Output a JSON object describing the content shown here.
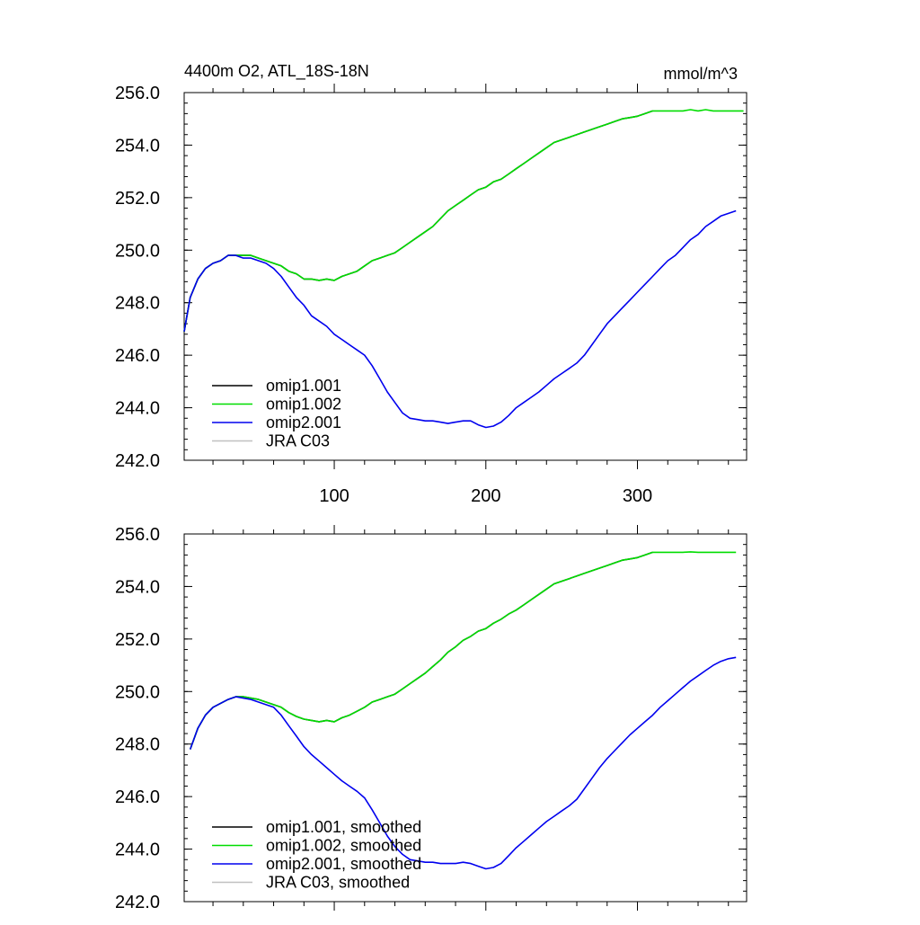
{
  "chart_data": [
    {
      "type": "line",
      "title": "4400m O2, ATL_18S-18N",
      "units": "mmol/m^3",
      "xlim": [
        1,
        372
      ],
      "ylim": [
        242.0,
        256.0
      ],
      "x_ticks": [
        100,
        200,
        300
      ],
      "x_tick_labels": [
        "100",
        "200",
        "300"
      ],
      "y_ticks": [
        242.0,
        244.0,
        246.0,
        248.0,
        250.0,
        252.0,
        254.0,
        256.0
      ],
      "y_tick_labels": [
        "242.0",
        "244.0",
        "246.0",
        "248.0",
        "250.0",
        "252.0",
        "254.0",
        "256.0"
      ],
      "legend_position": "bottom-left",
      "series": [
        {
          "name": "omip1.001",
          "color": "#000000",
          "x": [
            1,
            5,
            10,
            15,
            20,
            25,
            30,
            35,
            40,
            45,
            50,
            55,
            60,
            65,
            70,
            75,
            80,
            85,
            90,
            95,
            100,
            105,
            110,
            115,
            120,
            125,
            130,
            135,
            140,
            145,
            150,
            155,
            160,
            165,
            170,
            175,
            180,
            185,
            190,
            195,
            200,
            205,
            210,
            215,
            220,
            225,
            230,
            235,
            240,
            245,
            250,
            255,
            260,
            265,
            270,
            275,
            280,
            285,
            290,
            295,
            300,
            305,
            310
          ],
          "y": [
            246.9,
            248.2,
            248.9,
            249.3,
            249.5,
            249.6,
            249.8,
            249.8,
            249.8,
            249.8,
            249.7,
            249.6,
            249.5,
            249.4,
            249.2,
            249.1,
            248.9,
            248.9,
            248.85,
            248.9,
            248.85,
            249.0,
            249.1,
            249.2,
            249.4,
            249.6,
            249.7,
            249.8,
            249.9,
            250.1,
            250.3,
            250.5,
            250.7,
            250.9,
            251.2,
            251.5,
            251.7,
            251.9,
            252.1,
            252.3,
            252.4,
            252.6,
            252.7,
            252.9,
            253.1,
            253.3,
            253.5,
            253.7,
            253.9,
            254.1,
            254.2,
            254.3,
            254.4,
            254.5,
            254.6,
            254.7,
            254.8,
            254.9,
            255.0,
            255.05,
            255.1,
            255.2,
            255.3
          ]
        },
        {
          "name": "omip1.002",
          "color": "#00dd00",
          "x": [
            1,
            5,
            10,
            15,
            20,
            25,
            30,
            35,
            40,
            45,
            50,
            55,
            60,
            65,
            70,
            75,
            80,
            85,
            90,
            95,
            100,
            105,
            110,
            115,
            120,
            125,
            130,
            135,
            140,
            145,
            150,
            155,
            160,
            165,
            170,
            175,
            180,
            185,
            190,
            195,
            200,
            205,
            210,
            215,
            220,
            225,
            230,
            235,
            240,
            245,
            250,
            255,
            260,
            265,
            270,
            275,
            280,
            285,
            290,
            295,
            300,
            305,
            310,
            315,
            320,
            325,
            330,
            335,
            340,
            345,
            350,
            355,
            360,
            365,
            370
          ],
          "y": [
            246.9,
            248.2,
            248.9,
            249.3,
            249.5,
            249.6,
            249.8,
            249.8,
            249.8,
            249.8,
            249.7,
            249.6,
            249.5,
            249.4,
            249.2,
            249.1,
            248.9,
            248.9,
            248.85,
            248.9,
            248.85,
            249.0,
            249.1,
            249.2,
            249.4,
            249.6,
            249.7,
            249.8,
            249.9,
            250.1,
            250.3,
            250.5,
            250.7,
            250.9,
            251.2,
            251.5,
            251.7,
            251.9,
            252.1,
            252.3,
            252.4,
            252.6,
            252.7,
            252.9,
            253.1,
            253.3,
            253.5,
            253.7,
            253.9,
            254.1,
            254.2,
            254.3,
            254.4,
            254.5,
            254.6,
            254.7,
            254.8,
            254.9,
            255.0,
            255.05,
            255.1,
            255.2,
            255.3,
            255.3,
            255.3,
            255.3,
            255.3,
            255.35,
            255.3,
            255.35,
            255.3,
            255.3,
            255.3,
            255.3,
            255.3
          ]
        },
        {
          "name": "omip2.001",
          "color": "#0000ee",
          "x": [
            1,
            5,
            10,
            15,
            20,
            25,
            30,
            35,
            40,
            45,
            50,
            55,
            60,
            65,
            70,
            75,
            80,
            85,
            90,
            95,
            100,
            105,
            110,
            115,
            120,
            125,
            130,
            135,
            140,
            145,
            150,
            155,
            160,
            165,
            170,
            175,
            180,
            185,
            190,
            195,
            200,
            205,
            210,
            215,
            220,
            225,
            230,
            235,
            240,
            245,
            250,
            255,
            260,
            265,
            270,
            275,
            280,
            285,
            290,
            295,
            300,
            305,
            310,
            315,
            320,
            325,
            330,
            335,
            340,
            345,
            350,
            355,
            360,
            365
          ],
          "y": [
            246.9,
            248.2,
            248.9,
            249.3,
            249.5,
            249.6,
            249.8,
            249.8,
            249.7,
            249.7,
            249.6,
            249.5,
            249.3,
            249.0,
            248.6,
            248.2,
            247.9,
            247.5,
            247.3,
            247.1,
            246.8,
            246.6,
            246.4,
            246.2,
            246.0,
            245.6,
            245.1,
            244.6,
            244.2,
            243.8,
            243.6,
            243.55,
            243.5,
            243.5,
            243.45,
            243.4,
            243.45,
            243.5,
            243.5,
            243.35,
            243.25,
            243.3,
            243.45,
            243.7,
            244.0,
            244.2,
            244.4,
            244.6,
            244.85,
            245.1,
            245.3,
            245.5,
            245.7,
            246.0,
            246.4,
            246.8,
            247.2,
            247.5,
            247.8,
            248.1,
            248.4,
            248.7,
            249.0,
            249.3,
            249.6,
            249.8,
            250.1,
            250.4,
            250.6,
            250.9,
            251.1,
            251.3,
            251.4,
            251.5
          ]
        },
        {
          "name": "JRA C03",
          "color": "#c0c0c0",
          "x": [],
          "y": []
        }
      ]
    },
    {
      "type": "line",
      "title": "",
      "units": "",
      "xlim": [
        1,
        372
      ],
      "ylim": [
        242.0,
        256.0
      ],
      "x_ticks": [
        100,
        200,
        300
      ],
      "x_tick_labels": [],
      "y_ticks": [
        242.0,
        244.0,
        246.0,
        248.0,
        250.0,
        252.0,
        254.0,
        256.0
      ],
      "y_tick_labels": [
        "242.0",
        "244.0",
        "246.0",
        "248.0",
        "250.0",
        "252.0",
        "254.0",
        "256.0"
      ],
      "legend_position": "bottom-left",
      "series": [
        {
          "name": "omip1.001, smoothed",
          "color": "#000000",
          "x": [
            5,
            10,
            15,
            20,
            25,
            30,
            35,
            40,
            45,
            50,
            55,
            60,
            65,
            70,
            75,
            80,
            85,
            90,
            95,
            100,
            105,
            110,
            115,
            120,
            125,
            130,
            135,
            140,
            145,
            150,
            155,
            160,
            165,
            170,
            175,
            180,
            185,
            190,
            195,
            200,
            205,
            210,
            215,
            220,
            225,
            230,
            235,
            240,
            245,
            250,
            255,
            260,
            265,
            270,
            275,
            280,
            285,
            290,
            295,
            300,
            305,
            310
          ],
          "y": [
            247.8,
            248.6,
            249.1,
            249.4,
            249.55,
            249.7,
            249.8,
            249.8,
            249.75,
            249.7,
            249.6,
            249.5,
            249.4,
            249.2,
            249.05,
            248.95,
            248.9,
            248.85,
            248.9,
            248.85,
            249.0,
            249.1,
            249.25,
            249.4,
            249.6,
            249.7,
            249.8,
            249.9,
            250.1,
            250.3,
            250.5,
            250.7,
            250.95,
            251.2,
            251.5,
            251.7,
            251.95,
            252.1,
            252.3,
            252.4,
            252.6,
            252.75,
            252.95,
            253.1,
            253.3,
            253.5,
            253.7,
            253.9,
            254.1,
            254.2,
            254.3,
            254.4,
            254.5,
            254.6,
            254.7,
            254.8,
            254.9,
            255.0,
            255.05,
            255.1,
            255.2,
            255.3
          ]
        },
        {
          "name": "omip1.002, smoothed",
          "color": "#00dd00",
          "x": [
            5,
            10,
            15,
            20,
            25,
            30,
            35,
            40,
            45,
            50,
            55,
            60,
            65,
            70,
            75,
            80,
            85,
            90,
            95,
            100,
            105,
            110,
            115,
            120,
            125,
            130,
            135,
            140,
            145,
            150,
            155,
            160,
            165,
            170,
            175,
            180,
            185,
            190,
            195,
            200,
            205,
            210,
            215,
            220,
            225,
            230,
            235,
            240,
            245,
            250,
            255,
            260,
            265,
            270,
            275,
            280,
            285,
            290,
            295,
            300,
            305,
            310,
            315,
            320,
            325,
            330,
            335,
            340,
            345,
            350,
            355,
            360,
            365
          ],
          "y": [
            247.8,
            248.6,
            249.1,
            249.4,
            249.55,
            249.7,
            249.8,
            249.8,
            249.75,
            249.7,
            249.6,
            249.5,
            249.4,
            249.2,
            249.05,
            248.95,
            248.9,
            248.85,
            248.9,
            248.85,
            249.0,
            249.1,
            249.25,
            249.4,
            249.6,
            249.7,
            249.8,
            249.9,
            250.1,
            250.3,
            250.5,
            250.7,
            250.95,
            251.2,
            251.5,
            251.7,
            251.95,
            252.1,
            252.3,
            252.4,
            252.6,
            252.75,
            252.95,
            253.1,
            253.3,
            253.5,
            253.7,
            253.9,
            254.1,
            254.2,
            254.3,
            254.4,
            254.5,
            254.6,
            254.7,
            254.8,
            254.9,
            255.0,
            255.05,
            255.1,
            255.2,
            255.3,
            255.3,
            255.3,
            255.3,
            255.3,
            255.32,
            255.3,
            255.3,
            255.3,
            255.3,
            255.3,
            255.3
          ]
        },
        {
          "name": "omip2.001, smoothed",
          "color": "#0000ee",
          "x": [
            5,
            10,
            15,
            20,
            25,
            30,
            35,
            40,
            45,
            50,
            55,
            60,
            65,
            70,
            75,
            80,
            85,
            90,
            95,
            100,
            105,
            110,
            115,
            120,
            125,
            130,
            135,
            140,
            145,
            150,
            155,
            160,
            165,
            170,
            175,
            180,
            185,
            190,
            195,
            200,
            205,
            210,
            215,
            220,
            225,
            230,
            235,
            240,
            245,
            250,
            255,
            260,
            265,
            270,
            275,
            280,
            285,
            290,
            295,
            300,
            305,
            310,
            315,
            320,
            325,
            330,
            335,
            340,
            345,
            350,
            355,
            360,
            365
          ],
          "y": [
            247.8,
            248.6,
            249.1,
            249.4,
            249.55,
            249.7,
            249.8,
            249.75,
            249.7,
            249.6,
            249.5,
            249.4,
            249.1,
            248.7,
            248.3,
            247.9,
            247.6,
            247.35,
            247.1,
            246.85,
            246.6,
            246.4,
            246.2,
            245.95,
            245.5,
            245.0,
            244.5,
            244.1,
            243.8,
            243.6,
            243.55,
            243.5,
            243.5,
            243.45,
            243.45,
            243.45,
            243.5,
            243.45,
            243.35,
            243.25,
            243.3,
            243.45,
            243.75,
            244.05,
            244.3,
            244.55,
            244.8,
            245.05,
            245.25,
            245.45,
            245.65,
            245.9,
            246.3,
            246.7,
            247.1,
            247.45,
            247.75,
            248.05,
            248.35,
            248.6,
            248.85,
            249.1,
            249.4,
            249.65,
            249.9,
            250.15,
            250.4,
            250.6,
            250.8,
            251.0,
            251.15,
            251.25,
            251.3
          ]
        },
        {
          "name": "JRA C03, smoothed",
          "color": "#c0c0c0",
          "x": [],
          "y": []
        }
      ]
    }
  ]
}
